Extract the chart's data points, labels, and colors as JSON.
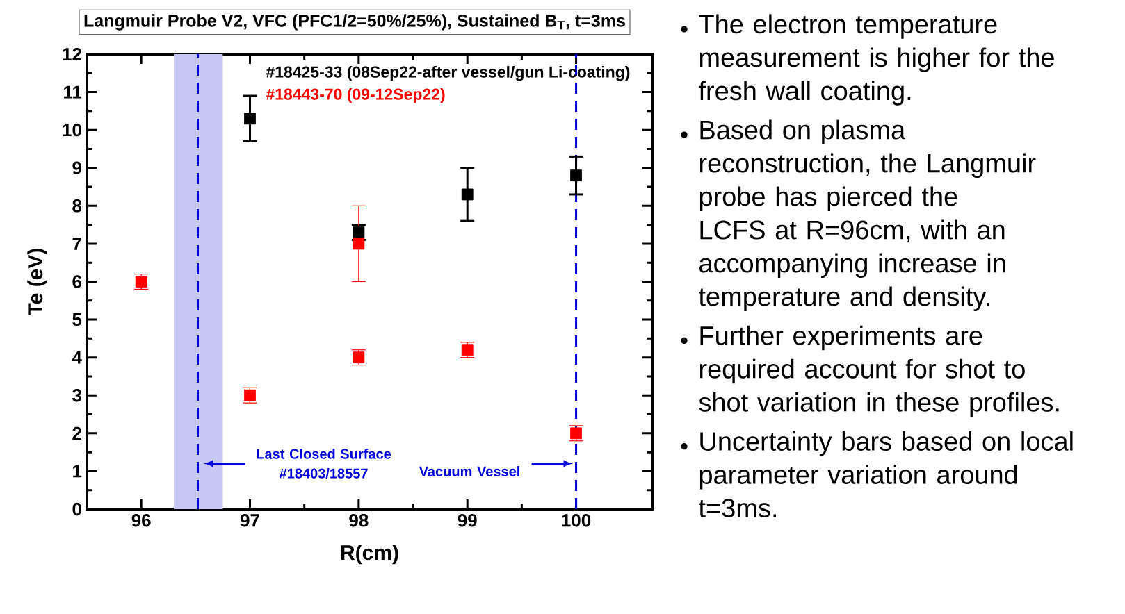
{
  "chart_data": {
    "type": "scatter",
    "title": "Langmuir Probe V2, VFC (PFC1/2=50%/25%), Sustained B$_{T}$, t=3ms",
    "xlabel": "R(cm)",
    "ylabel": "Te (eV)",
    "xlim": [
      95.5,
      100.7
    ],
    "ylim": [
      0,
      12
    ],
    "xticks": [
      96,
      97,
      98,
      99,
      100
    ],
    "yticks": [
      0,
      1,
      2,
      3,
      4,
      5,
      6,
      7,
      8,
      9,
      10,
      11,
      12
    ],
    "marker": "square",
    "legend": "top right",
    "grid": false,
    "series": [
      {
        "name": "#18425-33 (08Sep22-after vessel/gun Li-coating)",
        "color": "#000000",
        "x": [
          97,
          98,
          99,
          100
        ],
        "values": [
          10.3,
          7.3,
          8.3,
          8.8
        ],
        "errors": [
          0.6,
          0.2,
          0.7,
          0.5
        ]
      },
      {
        "name": "#18443-70 (09-12Sep22)",
        "color": "#ff0000",
        "x": [
          96,
          97,
          98,
          98,
          99,
          100
        ],
        "values": [
          6,
          3,
          7,
          4,
          4.2,
          2
        ],
        "errors": [
          0.2,
          0.2,
          1,
          0.2,
          0.2,
          0.2
        ]
      }
    ],
    "bands": [
      {
        "axis": "x",
        "from": 96.3,
        "to": 96.75,
        "color": "#c8c8f5"
      }
    ],
    "ref_lines": [
      {
        "axis": "x",
        "value": 96.52,
        "label": "Last Closed Surface #18403/18557",
        "color": "#0000dd",
        "line_style": "dashed"
      },
      {
        "axis": "x",
        "value": 100,
        "label": "Vacuum Vessel",
        "color": "#0000dd",
        "line_style": "dashed"
      }
    ],
    "annotations": [
      "The electron temperature measurement is higher for the fresh wall coating.",
      "Based on plasma reconstruction, the Langmuir probe has pierced the LCFS at R=96cm, with an accompanying increase in temperature and density.",
      "Further experiments are required account for shot to shot variation in these profiles.",
      "Uncertainty bars based on local parameter variation around t=3ms."
    ]
  }
}
